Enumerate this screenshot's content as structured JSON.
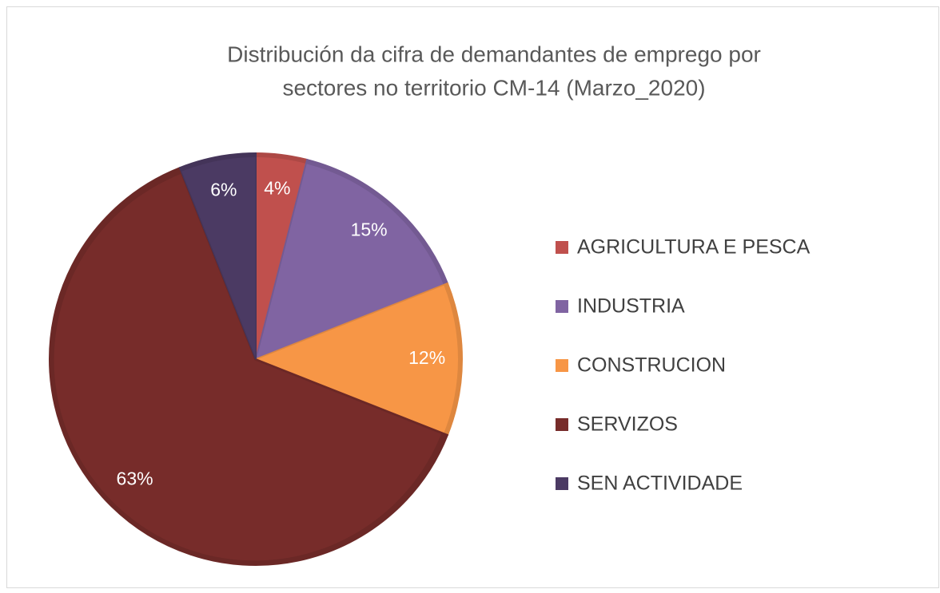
{
  "chart_data": {
    "type": "pie",
    "title": [
      "Distribución da cifra de demandantes de emprego por",
      "sectores no territorio CM-14  (Marzo_2020)"
    ],
    "categories": [
      "AGRICULTURA E PESCA",
      "INDUSTRIA",
      "CONSTRUCION",
      "SERVIZOS",
      "SEN ACTIVIDADE"
    ],
    "values": [
      4,
      15,
      12,
      63,
      6
    ],
    "value_labels": [
      "4%",
      "15%",
      "12%",
      "63%",
      "6%"
    ],
    "colors": [
      "#c0504d",
      "#8064a2",
      "#f79646",
      "#772c2a",
      "#4b3a63"
    ],
    "legend": "right"
  }
}
